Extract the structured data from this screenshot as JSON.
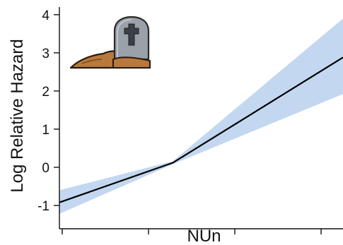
{
  "chart_data": {
    "type": "line",
    "xlabel": "NUn",
    "ylabel": "Log Relative Hazard",
    "ylim": [
      -1.5,
      4.2
    ],
    "xlim": [
      0,
      1
    ],
    "yticks": [
      "-1",
      "0",
      "1",
      "2",
      "3",
      "4"
    ],
    "xticks": [
      "",
      "",
      "",
      ""
    ],
    "series": [
      {
        "x": [
          0.0,
          0.4,
          1.0
        ],
        "y": [
          -0.92,
          0.12,
          2.88
        ],
        "lower": [
          -1.22,
          0.08,
          1.92
        ],
        "upper": [
          -0.6,
          0.16,
          3.9
        ],
        "line_color": "#000000",
        "band_color": "#c3d8f0"
      }
    ],
    "grid": false,
    "icon": "gravestone-icon"
  }
}
